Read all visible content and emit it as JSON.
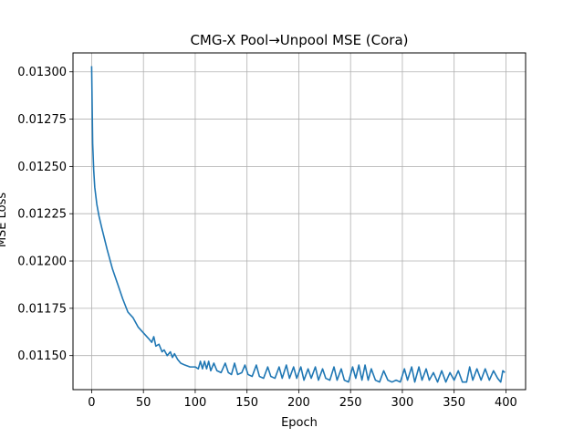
{
  "chart_data": {
    "type": "line",
    "title": "CMG-X Pool→Unpool MSE (Cora)",
    "xlabel": "Epoch",
    "ylabel": "MSE Loss",
    "xlim": [
      -18,
      419
    ],
    "ylim": [
      0.01132,
      0.0131
    ],
    "xticks": [
      0,
      50,
      100,
      150,
      200,
      250,
      300,
      350,
      400
    ],
    "yticks": [
      0.0115,
      0.01175,
      0.012,
      0.01225,
      0.0125,
      0.01275,
      0.013
    ],
    "ytick_labels": [
      "0.01150",
      "0.01175",
      "0.01200",
      "0.01225",
      "0.01250",
      "0.01275",
      "0.01300"
    ],
    "grid": true,
    "series": [
      {
        "color": "#1f77b4",
        "points": [
          [
            0,
            0.01303
          ],
          [
            1,
            0.01262
          ],
          [
            2,
            0.01248
          ],
          [
            3,
            0.01239
          ],
          [
            5,
            0.0123
          ],
          [
            7,
            0.01224
          ],
          [
            10,
            0.01217
          ],
          [
            15,
            0.01206
          ],
          [
            20,
            0.01196
          ],
          [
            25,
            0.01188
          ],
          [
            30,
            0.0118
          ],
          [
            35,
            0.01173
          ],
          [
            40,
            0.0117
          ],
          [
            45,
            0.01165
          ],
          [
            50,
            0.01162
          ],
          [
            55,
            0.01159
          ],
          [
            58,
            0.01157
          ],
          [
            60,
            0.0116
          ],
          [
            62,
            0.01155
          ],
          [
            65,
            0.01156
          ],
          [
            68,
            0.01152
          ],
          [
            70,
            0.01153
          ],
          [
            73,
            0.0115
          ],
          [
            76,
            0.01152
          ],
          [
            78,
            0.01149
          ],
          [
            80,
            0.01151
          ],
          [
            83,
            0.01148
          ],
          [
            86,
            0.01146
          ],
          [
            90,
            0.01145
          ],
          [
            95,
            0.01144
          ],
          [
            100,
            0.01144
          ],
          [
            103,
            0.01143
          ],
          [
            105,
            0.01147
          ],
          [
            107,
            0.01143
          ],
          [
            109,
            0.01147
          ],
          [
            111,
            0.01143
          ],
          [
            113,
            0.01147
          ],
          [
            115,
            0.01142
          ],
          [
            118,
            0.01146
          ],
          [
            121,
            0.01142
          ],
          [
            125,
            0.01141
          ],
          [
            129,
            0.01146
          ],
          [
            132,
            0.01141
          ],
          [
            135,
            0.0114
          ],
          [
            138,
            0.01146
          ],
          [
            141,
            0.0114
          ],
          [
            145,
            0.01141
          ],
          [
            148,
            0.01145
          ],
          [
            151,
            0.0114
          ],
          [
            155,
            0.01139
          ],
          [
            159,
            0.01145
          ],
          [
            162,
            0.01139
          ],
          [
            166,
            0.01138
          ],
          [
            170,
            0.01144
          ],
          [
            173,
            0.01139
          ],
          [
            177,
            0.01138
          ],
          [
            181,
            0.01144
          ],
          [
            184,
            0.01138
          ],
          [
            188,
            0.01145
          ],
          [
            191,
            0.01138
          ],
          [
            195,
            0.01144
          ],
          [
            198,
            0.01138
          ],
          [
            202,
            0.01144
          ],
          [
            205,
            0.01137
          ],
          [
            209,
            0.01143
          ],
          [
            212,
            0.01138
          ],
          [
            216,
            0.01144
          ],
          [
            219,
            0.01137
          ],
          [
            223,
            0.01143
          ],
          [
            226,
            0.01138
          ],
          [
            230,
            0.01137
          ],
          [
            234,
            0.01144
          ],
          [
            237,
            0.01137
          ],
          [
            241,
            0.01143
          ],
          [
            244,
            0.01137
          ],
          [
            248,
            0.01136
          ],
          [
            252,
            0.01144
          ],
          [
            255,
            0.01138
          ],
          [
            258,
            0.01145
          ],
          [
            261,
            0.01137
          ],
          [
            264,
            0.01145
          ],
          [
            267,
            0.01137
          ],
          [
            270,
            0.01143
          ],
          [
            274,
            0.01137
          ],
          [
            278,
            0.01136
          ],
          [
            282,
            0.01142
          ],
          [
            286,
            0.01137
          ],
          [
            290,
            0.01136
          ],
          [
            294,
            0.01137
          ],
          [
            298,
            0.01136
          ],
          [
            302,
            0.01143
          ],
          [
            305,
            0.01137
          ],
          [
            309,
            0.01144
          ],
          [
            312,
            0.01136
          ],
          [
            316,
            0.01144
          ],
          [
            319,
            0.01137
          ],
          [
            323,
            0.01143
          ],
          [
            326,
            0.01137
          ],
          [
            330,
            0.01141
          ],
          [
            334,
            0.01136
          ],
          [
            338,
            0.01142
          ],
          [
            342,
            0.01136
          ],
          [
            346,
            0.01141
          ],
          [
            350,
            0.01137
          ],
          [
            354,
            0.01142
          ],
          [
            358,
            0.01136
          ],
          [
            362,
            0.01136
          ],
          [
            365,
            0.01144
          ],
          [
            368,
            0.01137
          ],
          [
            372,
            0.01143
          ],
          [
            376,
            0.01137
          ],
          [
            380,
            0.01143
          ],
          [
            384,
            0.01137
          ],
          [
            388,
            0.01142
          ],
          [
            392,
            0.01138
          ],
          [
            395,
            0.01136
          ],
          [
            397,
            0.01142
          ],
          [
            399,
            0.01141
          ]
        ]
      }
    ]
  }
}
